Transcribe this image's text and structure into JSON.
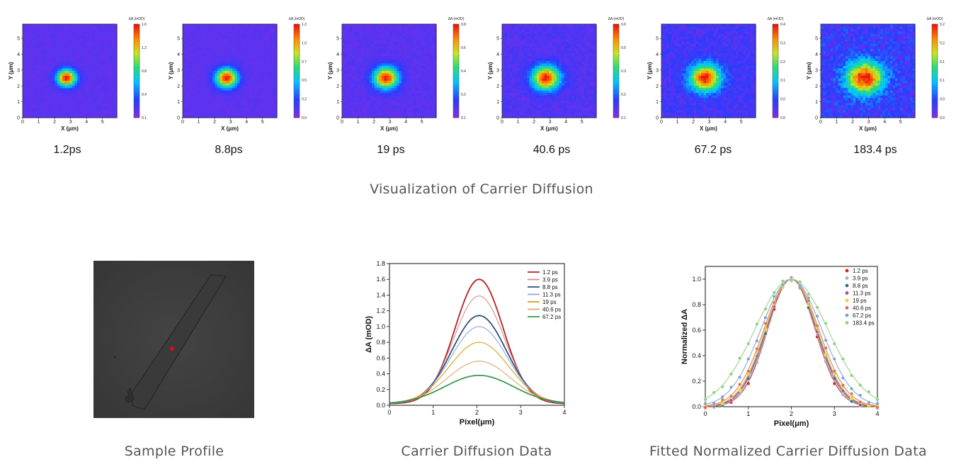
{
  "heatmaps": {
    "colorbar_title": "ΔA (mOD)",
    "x_axis_label": "X (μm)",
    "y_axis_label": "Y (μm)",
    "x_ticks": [
      "0",
      "1",
      "2",
      "3",
      "4",
      "5"
    ],
    "y_ticks": [
      "0",
      "1",
      "2",
      "3",
      "4",
      "5"
    ],
    "panels": [
      {
        "time": "1.2ps",
        "cb_ticks": [
          "1.6",
          "1.2",
          "0.8",
          "0.4",
          "0.1"
        ],
        "spread": 0.55,
        "noise": 0.02,
        "bg": 0.12
      },
      {
        "time": "8.8ps",
        "cb_ticks": [
          "1.2",
          "1.0",
          "0.7",
          "0.5",
          "0.2",
          "0.0"
        ],
        "spread": 0.62,
        "noise": 0.02,
        "bg": 0.12
      },
      {
        "time": "19 ps",
        "cb_ticks": [
          "0.8",
          "0.6",
          "0.4",
          "0.2",
          "0.1"
        ],
        "spread": 0.7,
        "noise": 0.03,
        "bg": 0.14
      },
      {
        "time": "40.6 ps",
        "cb_ticks": [
          "0.6",
          "0.5",
          "0.3",
          "0.2",
          "0.1"
        ],
        "spread": 0.78,
        "noise": 0.04,
        "bg": 0.18
      },
      {
        "time": "67.2 ps",
        "cb_ticks": [
          "0.4",
          "0.3",
          "0.2",
          "0.1",
          "0.0",
          "0.0"
        ],
        "spread": 0.88,
        "noise": 0.06,
        "bg": 0.26
      },
      {
        "time": "183.4 ps",
        "cb_ticks": [
          "0.2",
          "0.2",
          "0.1",
          "0.1",
          "0.0",
          "0.0"
        ],
        "spread": 1.05,
        "noise": 0.09,
        "bg": 0.34
      }
    ]
  },
  "captions": {
    "top": "Visualization of Carrier Diffusion",
    "sample": "Sample Profile",
    "diffusion": "Carrier Diffusion Data",
    "normalized": "Fitted Normalized Carrier Diffusion Data"
  },
  "chart_data": [
    {
      "type": "line",
      "title": "Carrier Diffusion Data",
      "xlabel": "Pixel(μm)",
      "ylabel": "ΔA (mOD)",
      "xlim": [
        0,
        4
      ],
      "ylim": [
        0,
        1.8
      ],
      "x_ticks": [
        "0",
        "1",
        "2",
        "3",
        "4"
      ],
      "y_ticks": [
        "0.0",
        "0.2",
        "0.4",
        "0.6",
        "0.8",
        "1.0",
        "1.2",
        "1.4",
        "1.6",
        "1.8"
      ],
      "center": 2.05,
      "series": [
        {
          "name": "1.2 ps",
          "peak": 1.58,
          "sigma": 0.55,
          "color": "#b22222"
        },
        {
          "name": "3.9 ps",
          "peak": 1.37,
          "sigma": 0.58,
          "color": "#d88a8a"
        },
        {
          "name": "8.8 ps",
          "peak": 1.12,
          "sigma": 0.62,
          "color": "#2f4f7f"
        },
        {
          "name": "11.3 ps",
          "peak": 0.98,
          "sigma": 0.64,
          "color": "#8fa3d6"
        },
        {
          "name": "19 ps",
          "peak": 0.78,
          "sigma": 0.68,
          "color": "#d4a017"
        },
        {
          "name": "40.6 ps",
          "peak": 0.54,
          "sigma": 0.72,
          "color": "#d9a86c"
        },
        {
          "name": "67.2 ps",
          "peak": 0.36,
          "sigma": 0.78,
          "color": "#3a9a4a"
        }
      ]
    },
    {
      "type": "scatter",
      "title": "Fitted Normalized Carrier Diffusion Data",
      "xlabel": "Pixel(μm)",
      "ylabel": "Normalized ΔA",
      "xlim": [
        0,
        4
      ],
      "ylim": [
        0,
        1.1
      ],
      "x_ticks": [
        "0",
        "1",
        "2",
        "3",
        "4"
      ],
      "y_ticks": [
        "0.0",
        "0.2",
        "0.4",
        "0.6",
        "0.8",
        "1.0"
      ],
      "center": 2.0,
      "series": [
        {
          "name": "1.2 ps",
          "sigma": 0.78,
          "color": "#e02020"
        },
        {
          "name": "3.9 ps",
          "sigma": 0.8,
          "color": "#b0b0b0"
        },
        {
          "name": "8.8 ps",
          "sigma": 0.82,
          "color": "#2a6f8f"
        },
        {
          "name": "11.3 ps",
          "sigma": 0.84,
          "color": "#a050a0"
        },
        {
          "name": "19 ps",
          "sigma": 0.86,
          "color": "#f0d020"
        },
        {
          "name": "40.6 ps",
          "sigma": 0.9,
          "color": "#e07040"
        },
        {
          "name": "67.2 ps",
          "sigma": 1.0,
          "color": "#7aa0d8"
        },
        {
          "name": "183.4 ps",
          "sigma": 1.2,
          "color": "#8fcf7f"
        }
      ]
    }
  ]
}
